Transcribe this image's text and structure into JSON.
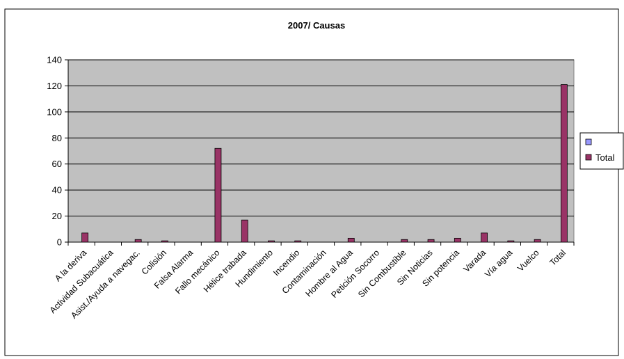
{
  "chart_data": {
    "type": "bar",
    "title": "2007/ Causas",
    "xlabel": "",
    "ylabel": "",
    "ylim": [
      0,
      140
    ],
    "yticks": [
      0,
      20,
      40,
      60,
      80,
      100,
      120,
      140
    ],
    "grid": true,
    "legend_position": "right",
    "categories": [
      "A la deriva",
      "Actividad Subacuática",
      "Asist./Ayuda a navegac.",
      "Colisión",
      "Falsa Alarma",
      "Fallo mecánico",
      "Hélice trabada",
      "Hundimiento",
      "Incendio",
      "Contaminación",
      "Hombre al Agua",
      "Petición Socorro",
      "Sin Combustible",
      "Sin Noticias",
      "Sin potencia",
      "Varada",
      "Vía agua",
      "Vuelco",
      "Total"
    ],
    "series": [
      {
        "name": "",
        "color": "#9999FF",
        "values": [
          0,
          0,
          0,
          0,
          0,
          0,
          0,
          0,
          0,
          0,
          0,
          0,
          0,
          0,
          0,
          0,
          0,
          0,
          0
        ]
      },
      {
        "name": "Total",
        "color": "#993366",
        "values": [
          7,
          0,
          2,
          1,
          0,
          72,
          17,
          1,
          1,
          0,
          3,
          0,
          2,
          2,
          3,
          7,
          1,
          2,
          121
        ]
      }
    ]
  },
  "colors": {
    "plot_background": "#C0C0C0",
    "gridline": "#000000"
  }
}
